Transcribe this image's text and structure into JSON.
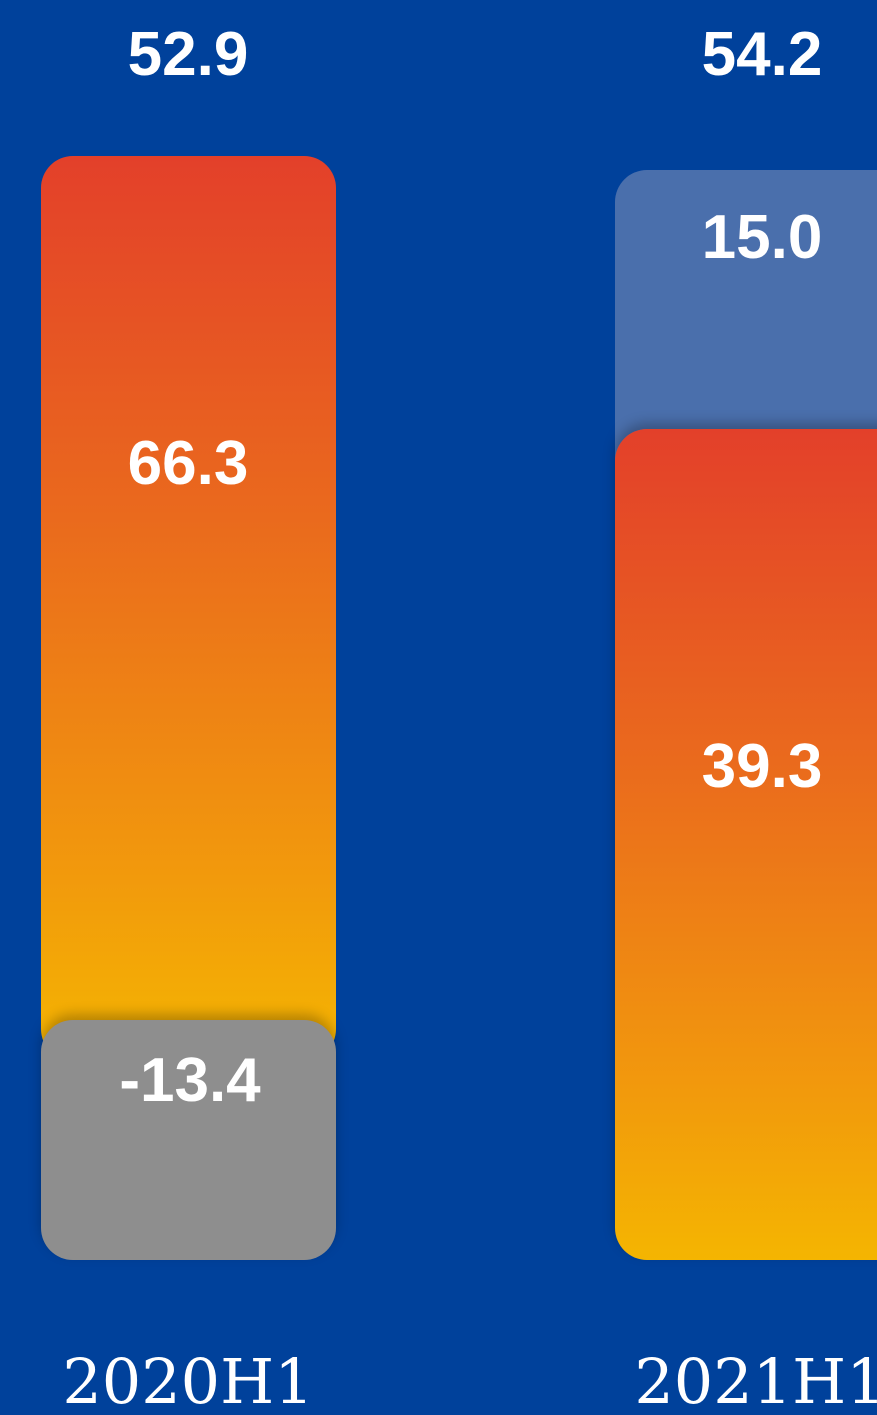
{
  "chart_data": {
    "type": "bar",
    "stacked": true,
    "categories": [
      "2020H1",
      "2021H1"
    ],
    "totals": [
      "52.9",
      "54.2"
    ],
    "bars": [
      {
        "category": "2020H1",
        "total": 52.9,
        "segments": [
          {
            "value": 66.3,
            "label": "66.3",
            "kind": "base"
          },
          {
            "value": -13.4,
            "label": "-13.4",
            "kind": "negative"
          }
        ]
      },
      {
        "category": "2021H1",
        "total": 54.2,
        "segments": [
          {
            "value": 39.3,
            "label": "39.3",
            "kind": "base"
          },
          {
            "value": 15.0,
            "label": "15.0",
            "kind": "positive"
          }
        ]
      }
    ],
    "colors": {
      "background": "#00419B",
      "base_top": "#E3402A",
      "base_bottom": "#F4B501",
      "negative": "#8E8E8E",
      "positive": "#4A6FAC",
      "text": "#FFFFFF"
    },
    "ylim": [
      0,
      70
    ],
    "grid": false,
    "legend": "none"
  }
}
